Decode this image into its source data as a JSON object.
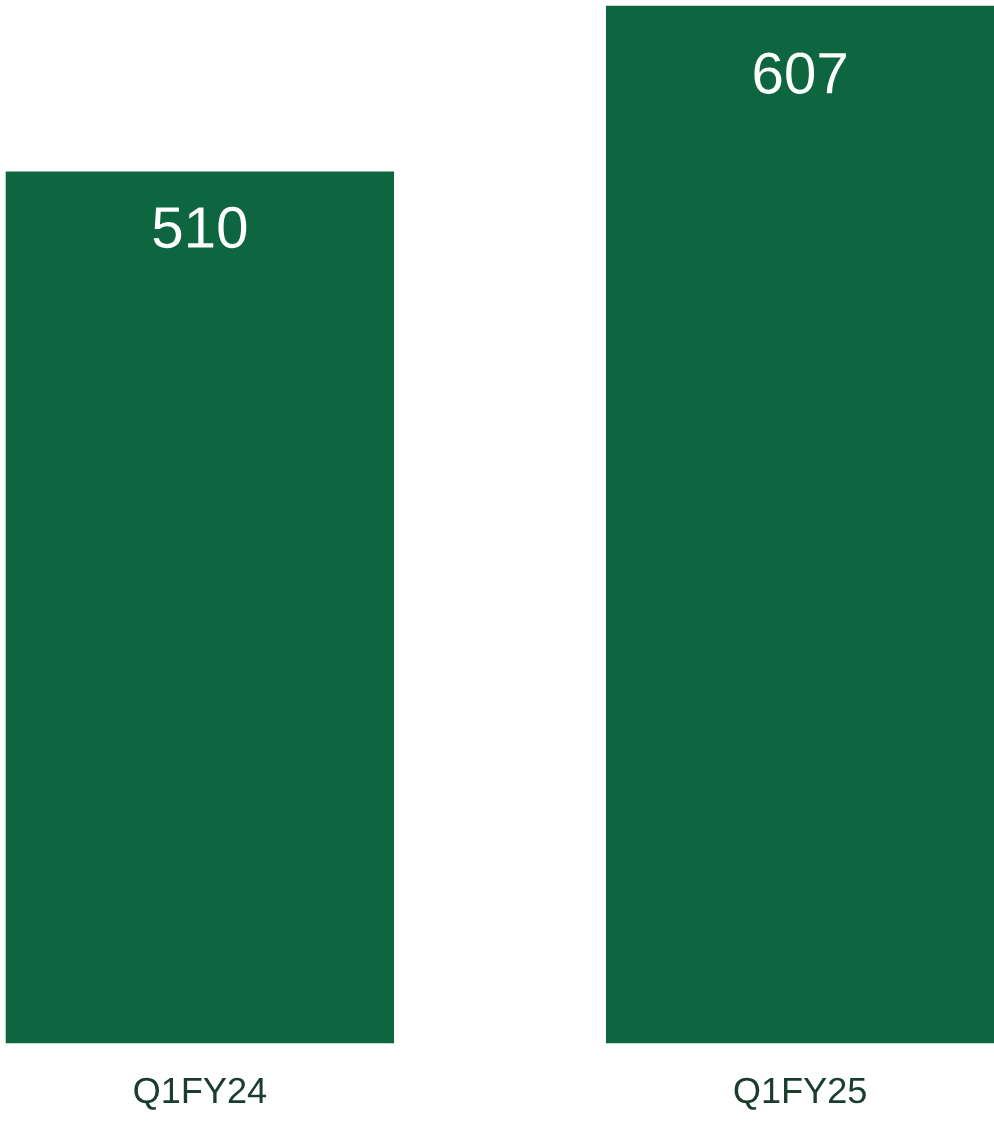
{
  "chart_data": {
    "type": "bar",
    "categories": [
      "Q1FY24",
      "Q1FY25"
    ],
    "values": [
      510,
      607
    ],
    "color": "#0d6640",
    "data_labels": true,
    "grid": false,
    "legend": false,
    "tick_labels": "x"
  }
}
